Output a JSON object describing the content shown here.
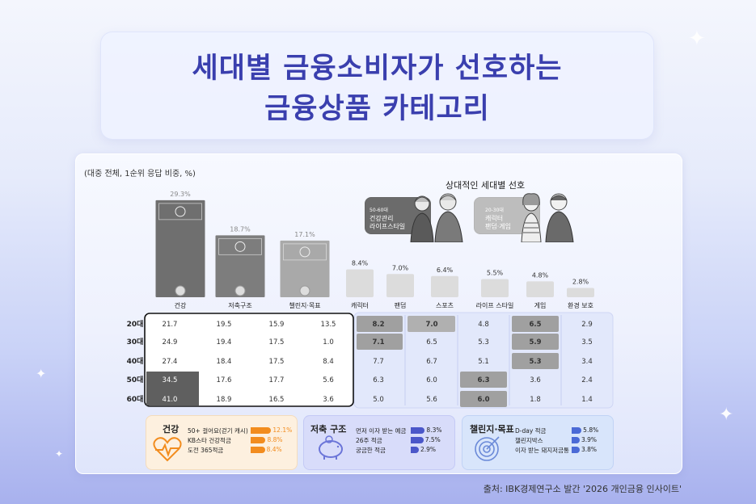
{
  "title": {
    "line1": "세대별 금융소비자가 선호하는",
    "line2": "금융상품 카테고리"
  },
  "note": "(대중 전체, 1순위 응답 비중, %)",
  "relative_title": "상대적인 세대별 선호",
  "bubbles": [
    {
      "age": "50-60대",
      "line1": "건강관리",
      "line2": "라이프스타일"
    },
    {
      "age": "20-30대",
      "line1": "캐릭터",
      "line2": "팬덤·게임"
    }
  ],
  "chart_data": {
    "type": "bar",
    "title": "세대별 금융소비자가 선호하는 금융상품 카테고리",
    "categories": [
      "건강",
      "저축구조",
      "챌린지·목표",
      "캐릭터",
      "팬덤",
      "스포츠",
      "라이프 스타일",
      "게임",
      "환경 보호"
    ],
    "values": [
      29.3,
      18.7,
      17.1,
      8.4,
      7.0,
      6.4,
      5.5,
      4.8,
      2.8
    ],
    "value_labels": [
      "29.3%",
      "18.7%",
      "17.1%",
      "8.4%",
      "7.0%",
      "6.4%",
      "5.5%",
      "4.8%",
      "2.8%"
    ],
    "ylim": [
      0,
      30
    ],
    "colors": {
      "dark": "#6f6f6f",
      "mid": "#7d7d7d",
      "light": "#a9a9a9",
      "minor": "#dcdcdc"
    }
  },
  "table": {
    "rows": [
      {
        "label": "20대",
        "values": [
          "21.7",
          "19.5",
          "15.9",
          "13.5",
          "8.2",
          "7.0",
          "4.8",
          "6.5",
          "2.9"
        ]
      },
      {
        "label": "30대",
        "values": [
          "24.9",
          "19.4",
          "17.5",
          "1.0",
          "7.1",
          "6.5",
          "5.3",
          "5.9",
          "3.5"
        ]
      },
      {
        "label": "40대",
        "values": [
          "27.4",
          "18.4",
          "17.5",
          "8.4",
          "7.7",
          "6.7",
          "5.1",
          "5.3",
          "3.4"
        ]
      },
      {
        "label": "50대",
        "values": [
          "34.5",
          "17.6",
          "17.7",
          "5.6",
          "6.3",
          "6.0",
          "6.3",
          "3.6",
          "2.4"
        ]
      },
      {
        "label": "60대",
        "values": [
          "41.0",
          "18.9",
          "16.5",
          "3.6",
          "5.0",
          "5.6",
          "6.0",
          "1.8",
          "1.4"
        ]
      }
    ]
  },
  "sub_panels": [
    {
      "title": "건강",
      "icon": "heart-pulse-icon",
      "accent": "#f28c1e",
      "items": [
        {
          "label": "50+ 걸어요(걷기 캐시)",
          "value": "12.1%"
        },
        {
          "label": "KB스타 건강적금",
          "value": "8.8%"
        },
        {
          "label": "도전 365적금",
          "value": "8.4%"
        }
      ]
    },
    {
      "title": "저축 구조",
      "icon": "piggy-bank-icon",
      "accent": "#4b57c9",
      "items": [
        {
          "label": "먼저 이자 받는 예금",
          "value": "8.3%"
        },
        {
          "label": "26주 적금",
          "value": "7.5%"
        },
        {
          "label": "궁금한 적금",
          "value": "2.9%"
        }
      ]
    },
    {
      "title": "챌린지·목표",
      "icon": "target-icon",
      "accent": "#4b6ad6",
      "items": [
        {
          "label": "D-day 적금",
          "value": "5.8%"
        },
        {
          "label": "챌린지박스",
          "value": "3.9%"
        },
        {
          "label": "이자 받는 돼지저금통",
          "value": "3.8%"
        }
      ]
    }
  ],
  "footer": "출처: IBK경제연구소 발간 '2026 개인금융 인사이트'"
}
